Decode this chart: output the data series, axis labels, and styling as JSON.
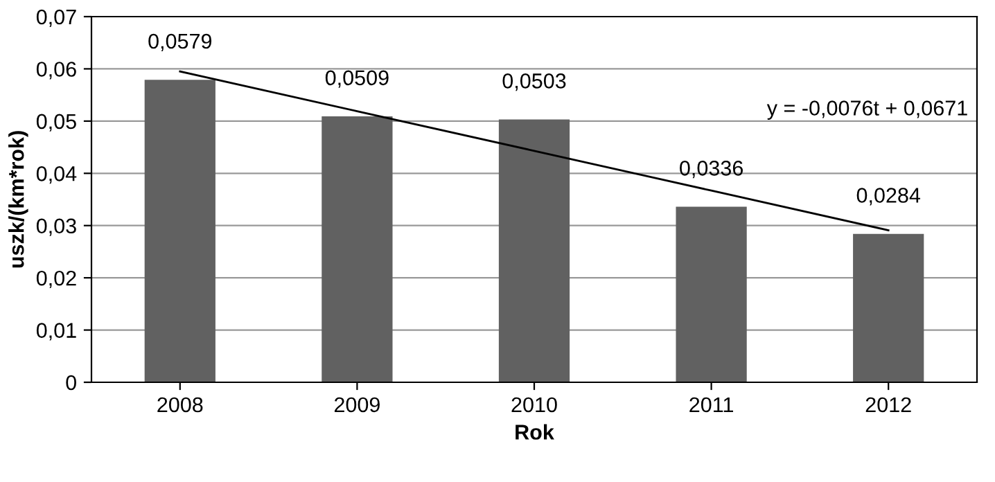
{
  "chart_data": {
    "type": "bar",
    "categories": [
      "2008",
      "2009",
      "2010",
      "2011",
      "2012"
    ],
    "series": [
      {
        "color": "#616161",
        "values": [
          0.0579,
          0.0509,
          0.0503,
          0.0336,
          0.0284
        ],
        "value_labels": [
          "0,0579",
          "0,0509",
          "0,0503",
          "0,0336",
          "0,0284"
        ]
      },
      {
        "type": "line",
        "color": "#000000",
        "values": [
          0.0595,
          0.0519,
          0.0443,
          0.0367,
          0.0291
        ]
      }
    ],
    "xlabel": "Rok",
    "ylabel": "uszk/(km*rok)",
    "ylim": [
      0,
      0.07
    ],
    "yticks": [
      0,
      {
        "value": 0.01,
        "label": "0,01"
      },
      {
        "value": 0.02,
        "label": "0,02"
      },
      {
        "value": 0.03,
        "label": "0,03"
      },
      {
        "value": 0.04,
        "label": "0,04"
      },
      {
        "value": 0.05,
        "label": "0,05"
      },
      {
        "value": 0.06,
        "label": "0,06"
      },
      {
        "value": 0.07,
        "label": "0,07"
      }
    ],
    "grid": "y",
    "legend": false,
    "annotations": [
      "y = -0,0076t + 0,0671"
    ]
  }
}
